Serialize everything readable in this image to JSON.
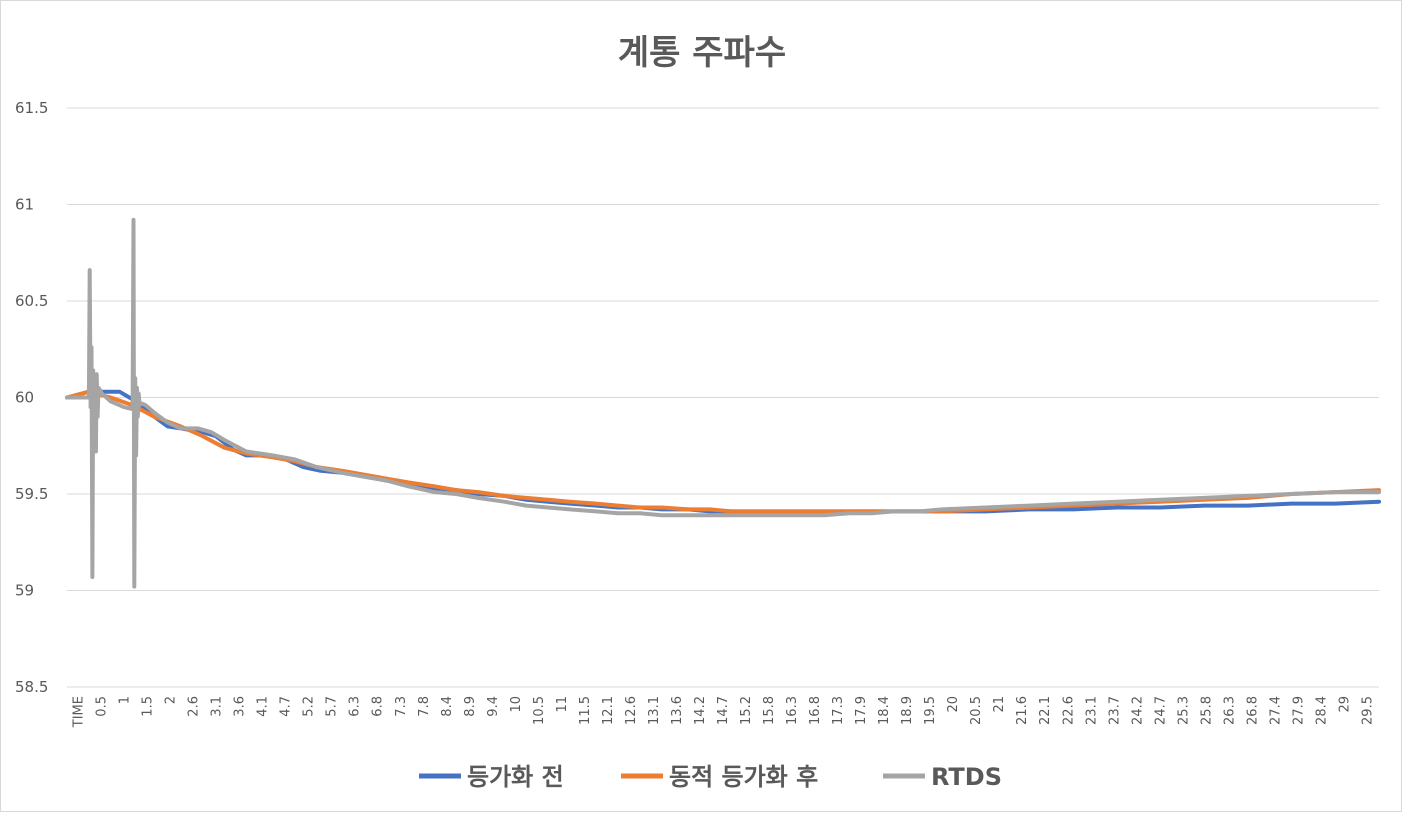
{
  "chart_data": {
    "type": "line",
    "title": "계통 주파수",
    "xlabel": "",
    "ylabel": "",
    "ylim": [
      58.5,
      61.5
    ],
    "yticks": [
      "58.5",
      "59",
      "59.5",
      "60",
      "60.5",
      "61",
      "61.5"
    ],
    "xlim": [
      0,
      30
    ],
    "xtick_labels": [
      "TIME",
      "0.5",
      "1",
      "1.5",
      "2",
      "2.6",
      "3.1",
      "3.6",
      "4.1",
      "4.7",
      "5.2",
      "5.7",
      "6.3",
      "6.8",
      "7.3",
      "7.8",
      "8.4",
      "8.9",
      "9.4",
      "10",
      "10.5",
      "11",
      "11.5",
      "12.1",
      "12.6",
      "13.1",
      "13.6",
      "14.2",
      "14.7",
      "15.2",
      "15.8",
      "16.3",
      "16.8",
      "17.3",
      "17.9",
      "18.4",
      "18.9",
      "19.5",
      "20",
      "20.5",
      "21",
      "21.6",
      "22.1",
      "22.6",
      "23.1",
      "23.7",
      "24.2",
      "24.7",
      "25.3",
      "25.8",
      "26.3",
      "26.8",
      "27.4",
      "27.9",
      "28.4",
      "29",
      "29.5"
    ],
    "grid": true,
    "legend_position": "bottom",
    "series": [
      {
        "name": "등가화 전",
        "color": "#4472c4",
        "x": [
          0,
          0.5,
          1,
          1.2,
          1.5,
          2,
          2.3,
          2.6,
          3.1,
          3.4,
          3.8,
          4.1,
          4.5,
          5.0,
          5.4,
          5.8,
          6.3,
          6.8,
          7.3,
          7.8,
          8.4,
          8.9,
          9.4,
          10,
          10.5,
          11,
          11.5,
          12.1,
          12.6,
          13.1,
          13.6,
          14.2,
          14.7,
          15.2,
          15.8,
          16.3,
          16.8,
          17.3,
          17.9,
          18.4,
          18.9,
          19.5,
          20,
          20.5,
          21,
          22,
          23,
          24,
          25,
          26,
          27,
          28,
          29,
          30
        ],
        "y": [
          60.0,
          60.03,
          60.03,
          60.03,
          59.99,
          59.9,
          59.85,
          59.84,
          59.82,
          59.8,
          59.73,
          59.7,
          59.7,
          59.68,
          59.64,
          59.62,
          59.61,
          59.59,
          59.57,
          59.55,
          59.53,
          59.52,
          59.5,
          59.49,
          59.47,
          59.46,
          59.45,
          59.44,
          59.43,
          59.43,
          59.42,
          59.42,
          59.41,
          59.41,
          59.41,
          59.41,
          59.41,
          59.41,
          59.41,
          59.41,
          59.41,
          59.41,
          59.41,
          59.41,
          59.41,
          59.42,
          59.42,
          59.43,
          59.43,
          59.44,
          59.44,
          59.45,
          59.45,
          59.46
        ]
      },
      {
        "name": "동적 등가화 후",
        "color": "#ed7d31",
        "x": [
          0,
          0.5,
          1,
          1.5,
          2,
          2.6,
          3.1,
          3.6,
          4.1,
          4.7,
          5.2,
          5.7,
          6.3,
          6.8,
          7.3,
          7.8,
          8.4,
          8.9,
          9.4,
          10,
          10.5,
          11,
          11.5,
          12.1,
          12.6,
          13.1,
          13.6,
          14.2,
          14.7,
          15.2,
          15.8,
          16.3,
          16.8,
          17.3,
          17.9,
          18.4,
          18.9,
          19.5,
          20,
          21,
          22,
          23,
          24,
          25,
          26,
          27,
          28,
          29,
          30
        ],
        "y": [
          60.0,
          60.03,
          60.0,
          59.96,
          59.9,
          59.85,
          59.8,
          59.74,
          59.71,
          59.69,
          59.67,
          59.64,
          59.62,
          59.6,
          59.58,
          59.56,
          59.54,
          59.52,
          59.51,
          59.49,
          59.48,
          59.47,
          59.46,
          59.45,
          59.44,
          59.43,
          59.43,
          59.42,
          59.42,
          59.41,
          59.41,
          59.41,
          59.41,
          59.41,
          59.41,
          59.41,
          59.41,
          59.41,
          59.41,
          59.42,
          59.43,
          59.44,
          59.45,
          59.46,
          59.47,
          59.48,
          59.5,
          59.51,
          59.52
        ]
      },
      {
        "name": "RTDS",
        "color": "#a5a5a5",
        "x": [
          0,
          0.5,
          0.52,
          0.54,
          0.56,
          0.58,
          0.6,
          0.62,
          0.64,
          0.66,
          0.68,
          0.7,
          0.72,
          0.75,
          0.8,
          1,
          1.3,
          1.5,
          1.52,
          1.54,
          1.56,
          1.58,
          1.6,
          1.62,
          1.64,
          1.66,
          1.7,
          1.8,
          2,
          2.3,
          2.6,
          3.0,
          3.3,
          3.6,
          4.1,
          4.7,
          5.2,
          5.7,
          6.3,
          6.8,
          7.3,
          7.8,
          8.4,
          8.9,
          9.4,
          10,
          10.5,
          11,
          11.5,
          12.1,
          12.6,
          13.1,
          13.6,
          14.2,
          14.7,
          15.2,
          15.8,
          16.3,
          16.8,
          17.3,
          17.9,
          18.4,
          18.9,
          19.5,
          20,
          21,
          22,
          23,
          24,
          25,
          26,
          27,
          28,
          29,
          30
        ],
        "y": [
          60.0,
          60.0,
          60.66,
          59.95,
          60.26,
          59.07,
          60.14,
          59.8,
          60.1,
          59.72,
          60.12,
          59.9,
          60.05,
          60.04,
          60.02,
          59.98,
          59.95,
          59.94,
          60.92,
          59.02,
          60.1,
          59.7,
          60.05,
          59.9,
          60.02,
          59.96,
          59.97,
          59.96,
          59.92,
          59.87,
          59.84,
          59.84,
          59.82,
          59.78,
          59.72,
          59.7,
          59.68,
          59.64,
          59.61,
          59.59,
          59.57,
          59.54,
          59.51,
          59.5,
          59.48,
          59.46,
          59.44,
          59.43,
          59.42,
          59.41,
          59.4,
          59.4,
          59.39,
          59.39,
          59.39,
          59.39,
          59.39,
          59.39,
          59.39,
          59.39,
          59.4,
          59.4,
          59.41,
          59.41,
          59.42,
          59.43,
          59.44,
          59.45,
          59.46,
          59.47,
          59.48,
          59.49,
          59.5,
          59.51,
          59.51
        ]
      }
    ]
  }
}
